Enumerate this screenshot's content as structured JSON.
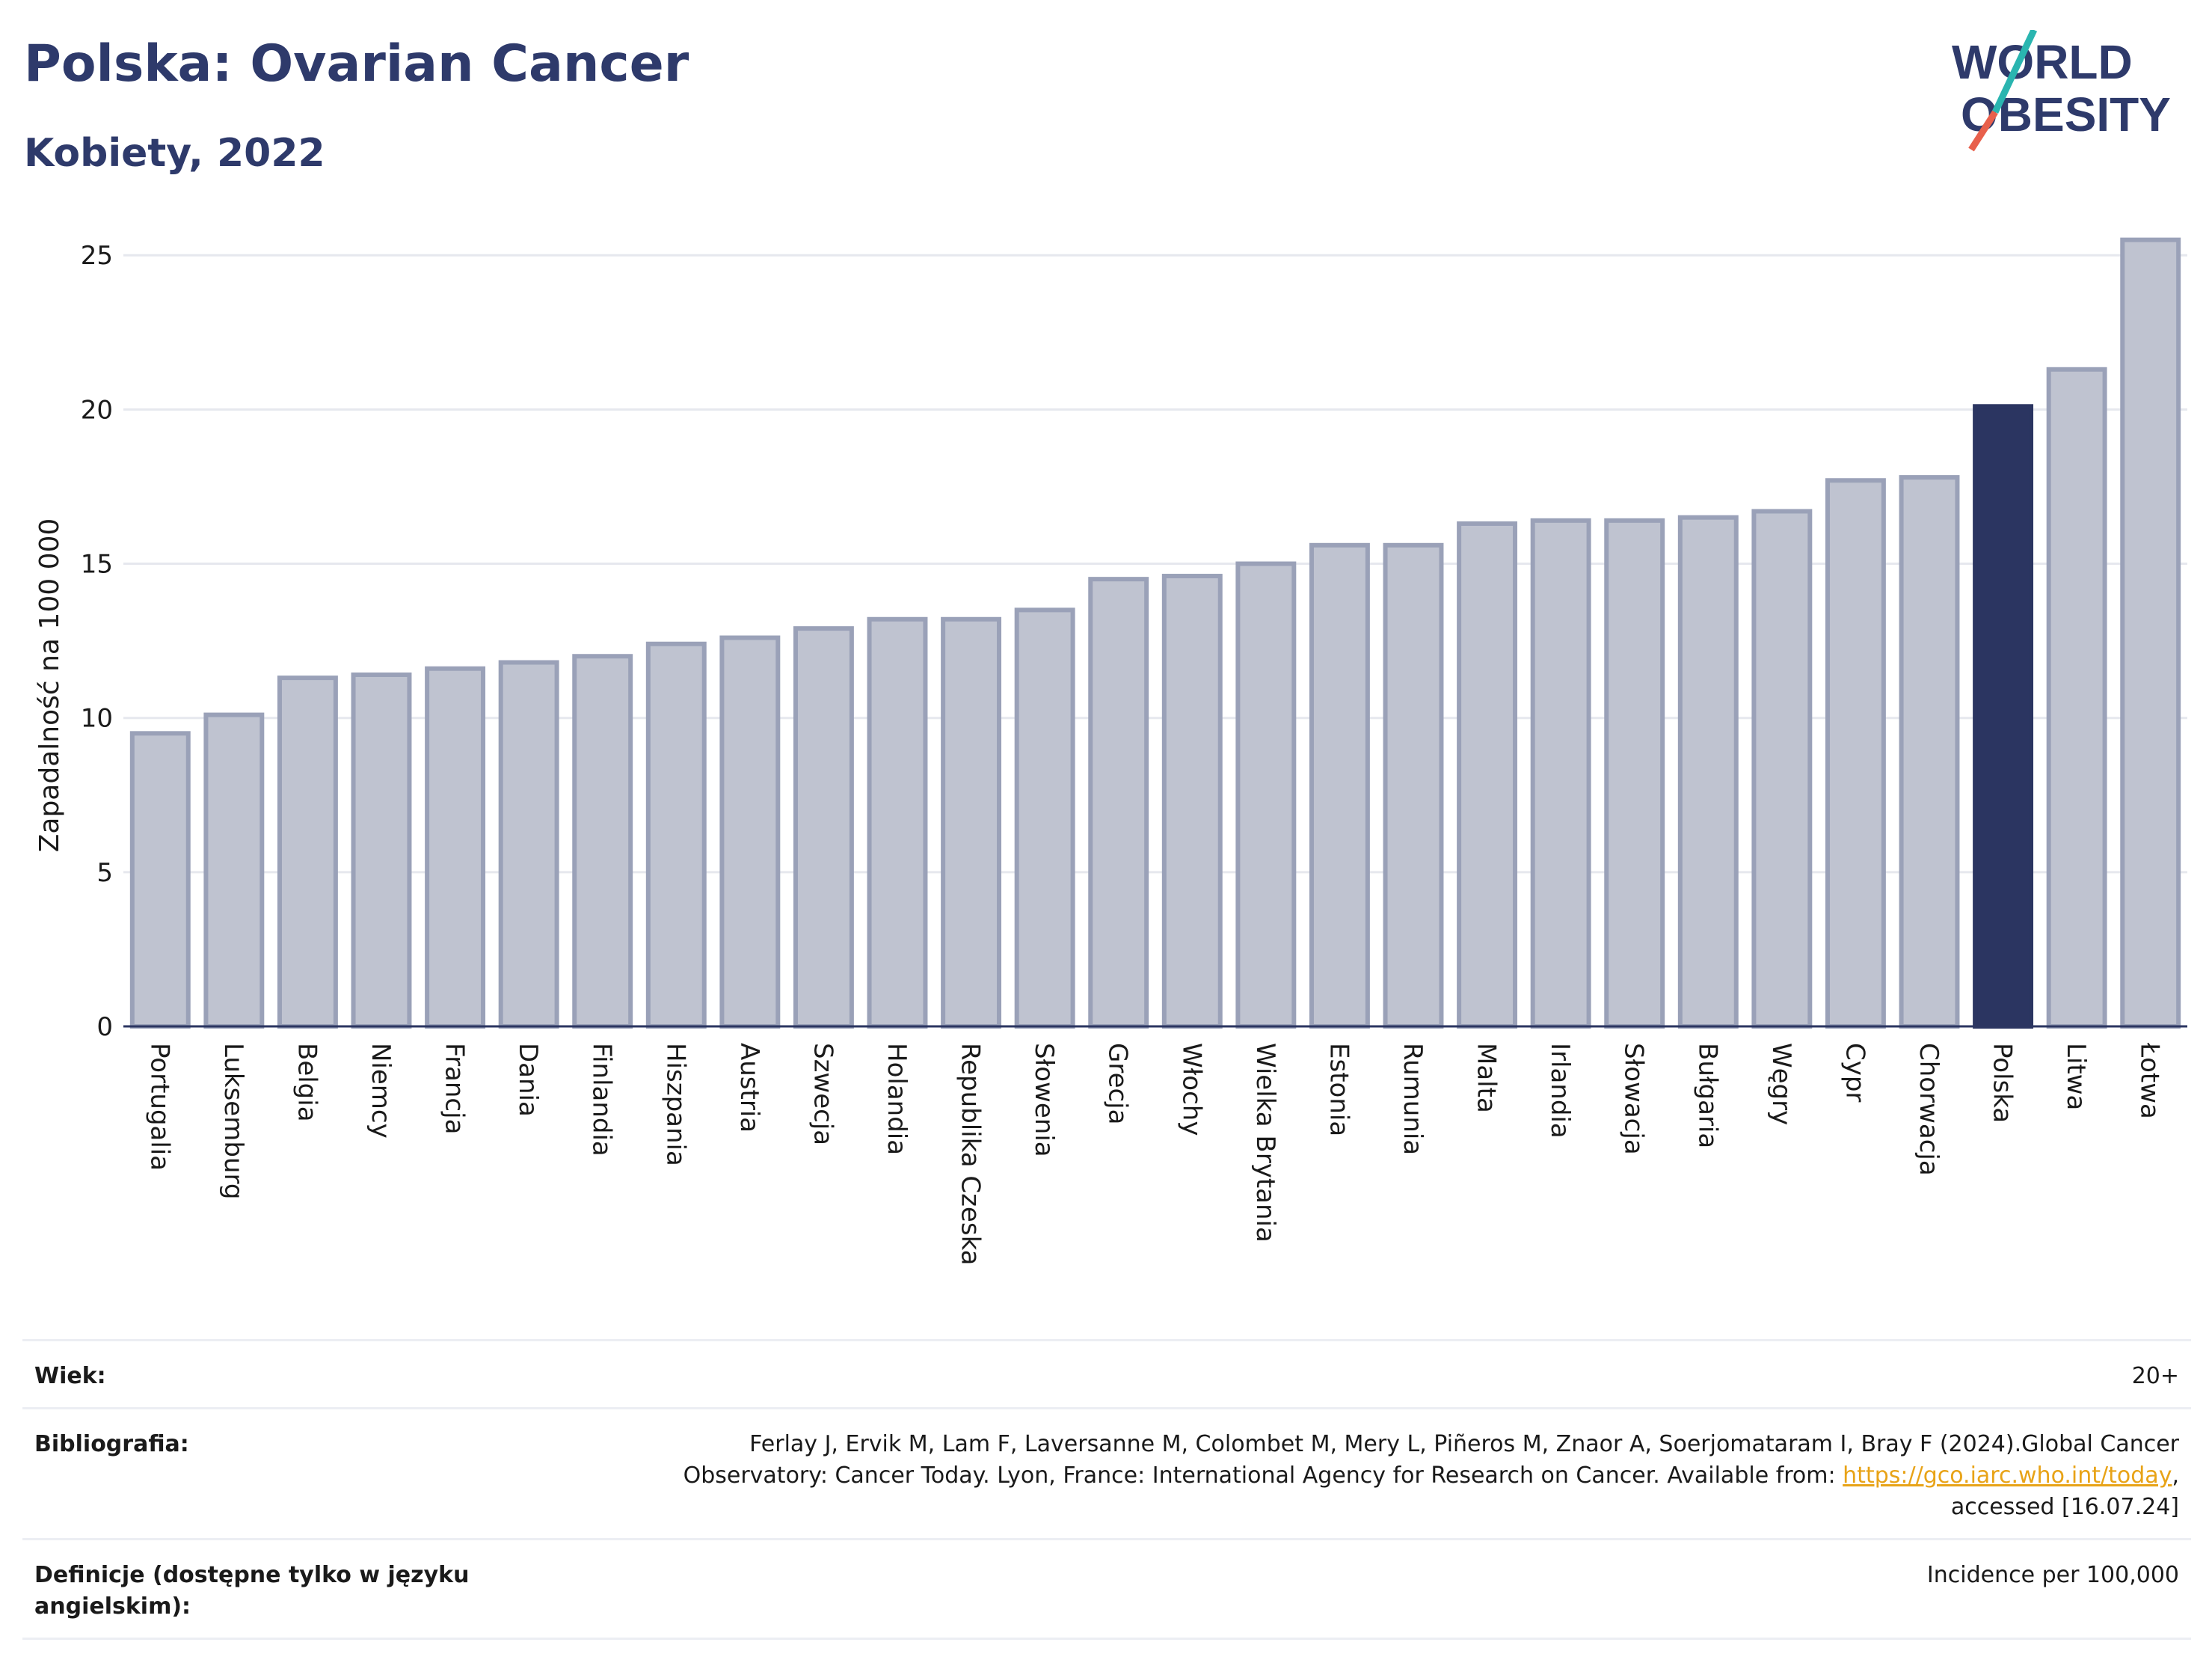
{
  "header": {
    "title": "Polska: Ovarian Cancer",
    "subtitle": "Kobiety, 2022"
  },
  "logo": {
    "line1": "WORLD",
    "line2": "OBESITY",
    "accent_colors": [
      "#2ab5b0",
      "#e8604c"
    ]
  },
  "chart_data": {
    "type": "bar",
    "ylabel": "Zapadalność na 100 000",
    "ylim": [
      0,
      26
    ],
    "yticks": [
      0,
      5,
      10,
      15,
      20,
      25
    ],
    "grid": true,
    "categories": [
      "Portugalia",
      "Luksemburg",
      "Belgia",
      "Niemcy",
      "Francja",
      "Dania",
      "Finlandia",
      "Hiszpania",
      "Austria",
      "Szwecja",
      "Holandia",
      "Republika Czeska",
      "Słowenia",
      "Grecja",
      "Włochy",
      "Wielka Brytania",
      "Estonia",
      "Rumunia",
      "Malta",
      "Irlandia",
      "Słowacja",
      "Bułgaria",
      "Węgry",
      "Cypr",
      "Chorwacja",
      "Polska",
      "Litwa",
      "Łotwa"
    ],
    "values": [
      9.5,
      10.1,
      11.3,
      11.4,
      11.6,
      11.8,
      12.0,
      12.4,
      12.6,
      12.9,
      13.2,
      13.2,
      13.5,
      14.5,
      14.6,
      15.0,
      15.6,
      15.6,
      16.3,
      16.4,
      16.4,
      16.5,
      16.7,
      17.7,
      17.8,
      20.1,
      21.3,
      25.5
    ],
    "highlight": "Polska",
    "colors": {
      "bar": "#bfc3d0",
      "bar_border": "#9aa1b8",
      "highlight": "#2b3561"
    }
  },
  "meta": {
    "age_label": "Wiek:",
    "age_value": "20+",
    "bib_label": "Bibliografia:",
    "bib_text_1": "Ferlay J, Ervik M, Lam F, Laversanne M, Colombet M, Mery L, Piñeros M, Znaor A, Soerjomataram I, Bray F (2024).Global Cancer Observatory: Cancer Today. Lyon, France: International Agency for Research on Cancer. Available from: ",
    "bib_link": "https://gco.iarc.who.int/today",
    "bib_text_2": ", accessed [16.07.24]",
    "def_label": "Definicje (dostępne tylko w języku angielskim):",
    "def_value": "Incidence per 100,000"
  }
}
